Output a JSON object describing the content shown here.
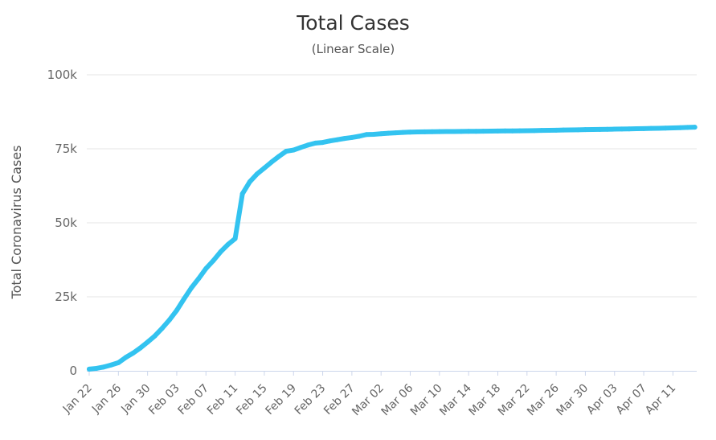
{
  "chart_data": {
    "type": "line",
    "title": "Total Cases",
    "subtitle": "(Linear Scale)",
    "xlabel": "",
    "ylabel": "Total Coronavirus Cases",
    "ylim": [
      0,
      100000
    ],
    "grid": true,
    "legend": "none",
    "y_ticks": [
      {
        "value": 0,
        "label": "0"
      },
      {
        "value": 25000,
        "label": "25k"
      },
      {
        "value": 50000,
        "label": "50k"
      },
      {
        "value": 75000,
        "label": "75k"
      },
      {
        "value": 100000,
        "label": "100k"
      }
    ],
    "x_ticks": [
      "Jan 22",
      "Jan 26",
      "Jan 30",
      "Feb 03",
      "Feb 07",
      "Feb 11",
      "Feb 15",
      "Feb 19",
      "Feb 23",
      "Feb 27",
      "Mar 02",
      "Mar 06",
      "Mar 10",
      "Mar 14",
      "Mar 18",
      "Mar 22",
      "Mar 26",
      "Mar 30",
      "Apr 03",
      "Apr 07",
      "Apr 11"
    ],
    "x": [
      "Jan 22",
      "Jan 23",
      "Jan 24",
      "Jan 25",
      "Jan 26",
      "Jan 27",
      "Jan 28",
      "Jan 29",
      "Jan 30",
      "Jan 31",
      "Feb 01",
      "Feb 02",
      "Feb 03",
      "Feb 04",
      "Feb 05",
      "Feb 06",
      "Feb 07",
      "Feb 08",
      "Feb 09",
      "Feb 10",
      "Feb 11",
      "Feb 12",
      "Feb 13",
      "Feb 14",
      "Feb 15",
      "Feb 16",
      "Feb 17",
      "Feb 18",
      "Feb 19",
      "Feb 20",
      "Feb 21",
      "Feb 22",
      "Feb 23",
      "Feb 24",
      "Feb 25",
      "Feb 26",
      "Feb 27",
      "Feb 28",
      "Feb 29",
      "Mar 01",
      "Mar 02",
      "Mar 03",
      "Mar 04",
      "Mar 05",
      "Mar 06",
      "Mar 07",
      "Mar 08",
      "Mar 09",
      "Mar 10",
      "Mar 11",
      "Mar 12",
      "Mar 13",
      "Mar 14",
      "Mar 15",
      "Mar 16",
      "Mar 17",
      "Mar 18",
      "Mar 19",
      "Mar 20",
      "Mar 21",
      "Mar 22",
      "Mar 23",
      "Mar 24",
      "Mar 25",
      "Mar 26",
      "Mar 27",
      "Mar 28",
      "Mar 29",
      "Mar 30",
      "Mar 31",
      "Apr 01",
      "Apr 02",
      "Apr 03",
      "Apr 04",
      "Apr 05",
      "Apr 06",
      "Apr 07",
      "Apr 08",
      "Apr 09",
      "Apr 10",
      "Apr 11",
      "Apr 12",
      "Apr 13",
      "Apr 14"
    ],
    "series": [
      {
        "name": "",
        "color": "#33c3f0",
        "values": [
          571,
          830,
          1287,
          1975,
          2744,
          4515,
          5974,
          7711,
          9692,
          11791,
          14380,
          17205,
          20438,
          24324,
          28018,
          31161,
          34546,
          37198,
          40171,
          42638,
          44653,
          59804,
          63851,
          66492,
          68500,
          70548,
          72436,
          74185,
          74576,
          75465,
          76288,
          76936,
          77150,
          77658,
          78064,
          78497,
          78824,
          79251,
          79824,
          79900,
          80100,
          80250,
          80400,
          80550,
          80650,
          80700,
          80750,
          80780,
          80800,
          80830,
          80850,
          80880,
          80900,
          80920,
          80950,
          80980,
          81000,
          81030,
          81060,
          81090,
          81120,
          81160,
          81200,
          81250,
          81290,
          81340,
          81390,
          81430,
          81480,
          81520,
          81560,
          81600,
          81650,
          81700,
          81740,
          81790,
          81840,
          81880,
          81930,
          82000,
          82070,
          82150,
          82230,
          82290
        ]
      }
    ]
  }
}
